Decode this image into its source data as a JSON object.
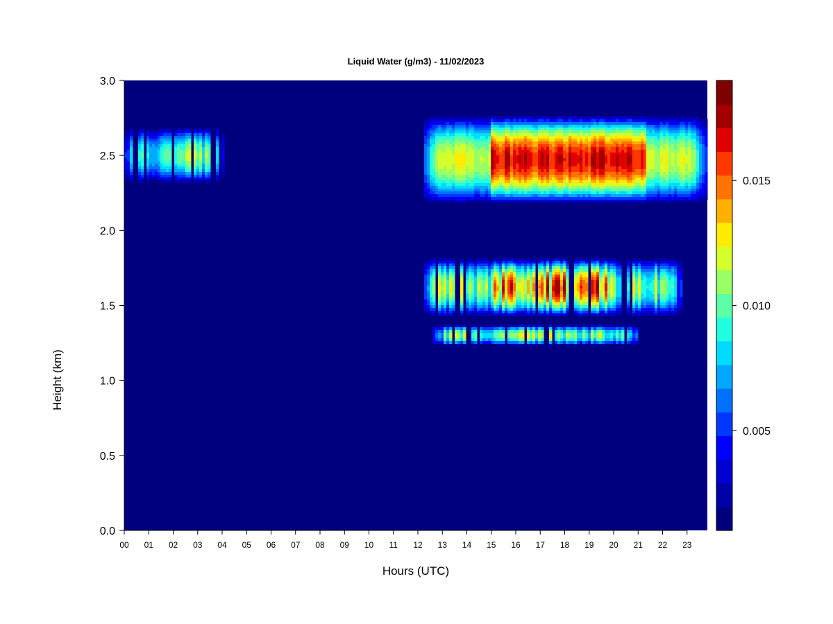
{
  "chart_data": {
    "type": "heatmap",
    "title": "Liquid Water (g/m3) - 11/02/2023",
    "xlabel": "Hours (UTC)",
    "ylabel": "Height (km)",
    "x_range": [
      0,
      24
    ],
    "ylim": [
      0.0,
      3.0
    ],
    "x_ticks": [
      {
        "value": 0,
        "label": "00"
      },
      {
        "value": 1,
        "label": "01"
      },
      {
        "value": 2,
        "label": "02"
      },
      {
        "value": 3,
        "label": "03"
      },
      {
        "value": 4,
        "label": "04"
      },
      {
        "value": 5,
        "label": "05"
      },
      {
        "value": 6,
        "label": "06"
      },
      {
        "value": 7,
        "label": "07"
      },
      {
        "value": 8,
        "label": "08"
      },
      {
        "value": 9,
        "label": "09"
      },
      {
        "value": 10,
        "label": "10"
      },
      {
        "value": 11,
        "label": "11"
      },
      {
        "value": 12,
        "label": "12"
      },
      {
        "value": 13,
        "label": "13"
      },
      {
        "value": 14,
        "label": "14"
      },
      {
        "value": 15,
        "label": "15"
      },
      {
        "value": 16,
        "label": "16"
      },
      {
        "value": 17,
        "label": "17"
      },
      {
        "value": 18,
        "label": "18"
      },
      {
        "value": 19,
        "label": "19"
      },
      {
        "value": 20,
        "label": "20"
      },
      {
        "value": 21,
        "label": "21"
      },
      {
        "value": 22,
        "label": "22"
      },
      {
        "value": 23,
        "label": "23"
      }
    ],
    "y_ticks": [
      {
        "value": 0.0,
        "label": "0.0"
      },
      {
        "value": 0.5,
        "label": "0.5"
      },
      {
        "value": 1.0,
        "label": "1.0"
      },
      {
        "value": 1.5,
        "label": "1.5"
      },
      {
        "value": 2.0,
        "label": "2.0"
      },
      {
        "value": 2.5,
        "label": "2.5"
      },
      {
        "value": 3.0,
        "label": "3.0"
      }
    ],
    "colorbar": {
      "range": [
        0.001,
        0.019
      ],
      "levels": 18,
      "colors": [
        "#00007F",
        "#0000AA",
        "#0000D4",
        "#0000FF",
        "#0038FF",
        "#0070FF",
        "#00A8FF",
        "#00DCFF",
        "#20FFDF",
        "#5CFFA3",
        "#99FF66",
        "#D4FF2B",
        "#FFEC00",
        "#FFB000",
        "#FF7400",
        "#FF3800",
        "#E00000",
        "#A40000",
        "#7F0000"
      ],
      "ticks": [
        {
          "value": 0.005,
          "label": "0.005"
        },
        {
          "value": 0.01,
          "label": "0.010"
        },
        {
          "value": 0.015,
          "label": "0.015"
        }
      ]
    },
    "background_value": 0.001,
    "cloud_layers": [
      {
        "x_start": 0.0,
        "x_end": 4.1,
        "y_center": 2.5,
        "half_thickness": 0.19,
        "peak": 0.0115,
        "streaky": true
      },
      {
        "x_start": 12.2,
        "x_end": 23.8,
        "y_center": 2.47,
        "half_thickness": 0.3,
        "peak": 0.0175,
        "core_x": [
          15.0,
          21.3
        ],
        "streaky": false
      },
      {
        "x_start": 12.2,
        "x_end": 22.8,
        "y_center": 1.62,
        "half_thickness": 0.2,
        "peak": 0.0175,
        "core_x": [
          15.0,
          19.8
        ],
        "streaky": true
      },
      {
        "x_start": 12.6,
        "x_end": 21.0,
        "y_center": 1.3,
        "half_thickness": 0.07,
        "peak": 0.0125,
        "streaky": true
      }
    ]
  }
}
